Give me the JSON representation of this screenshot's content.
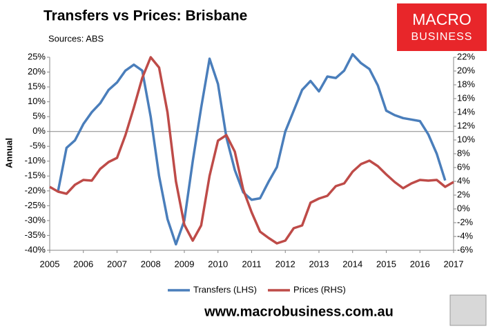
{
  "chart_data": {
    "type": "line",
    "title": "Transfers vs Prices: Brisbane",
    "subtitle": "Sources: ABS",
    "y_label": "Annual",
    "xlim": [
      2005,
      2017
    ],
    "xticks": [
      2005,
      2006,
      2007,
      2008,
      2009,
      2010,
      2011,
      2012,
      2013,
      2014,
      2015,
      2016,
      2017
    ],
    "ylim": [
      -40,
      25
    ],
    "yticks": [
      {
        "value": -40,
        "label": "-40%"
      },
      {
        "value": -35,
        "label": "-35%"
      },
      {
        "value": -30,
        "label": "-30%"
      },
      {
        "value": -25,
        "label": "-25%"
      },
      {
        "value": -20,
        "label": "-20%"
      },
      {
        "value": -15,
        "label": "-15%"
      },
      {
        "value": -10,
        "label": "-10%"
      },
      {
        "value": -5,
        "label": "-5%"
      },
      {
        "value": 0,
        "label": "0%"
      },
      {
        "value": 5,
        "label": "5%"
      },
      {
        "value": 10,
        "label": "10%"
      },
      {
        "value": 15,
        "label": "15%"
      },
      {
        "value": 20,
        "label": "20%"
      },
      {
        "value": 25,
        "label": "25%"
      }
    ],
    "y2lim": [
      -6,
      22
    ],
    "y2ticks": [
      {
        "value": -6,
        "label": "-6%"
      },
      {
        "value": -4,
        "label": "-4%"
      },
      {
        "value": -2,
        "label": "-2%"
      },
      {
        "value": 0,
        "label": "0%"
      },
      {
        "value": 2,
        "label": "2%"
      },
      {
        "value": 4,
        "label": "4%"
      },
      {
        "value": 6,
        "label": "6%"
      },
      {
        "value": 8,
        "label": "8%"
      },
      {
        "value": 10,
        "label": "10%"
      },
      {
        "value": 12,
        "label": "12%"
      },
      {
        "value": 14,
        "label": "14%"
      },
      {
        "value": 16,
        "label": "16%"
      },
      {
        "value": 18,
        "label": "18%"
      },
      {
        "value": 20,
        "label": "20%"
      },
      {
        "value": 22,
        "label": "22%"
      }
    ],
    "series": [
      {
        "name": "Transfers (LHS)",
        "color": "#4a7ebb",
        "axis": "y",
        "x": [
          2005.25,
          2005.5,
          2005.75,
          2006,
          2006.25,
          2006.5,
          2006.75,
          2007,
          2007.25,
          2007.5,
          2007.75,
          2008,
          2008.25,
          2008.5,
          2008.75,
          2009,
          2009.25,
          2009.5,
          2009.75,
          2010,
          2010.25,
          2010.5,
          2010.75,
          2011,
          2011.25,
          2011.5,
          2011.75,
          2012,
          2012.25,
          2012.5,
          2012.75,
          2013,
          2013.25,
          2013.5,
          2013.75,
          2014,
          2014.25,
          2014.5,
          2014.75,
          2015,
          2015.25,
          2015.5,
          2015.75,
          2016,
          2016.25,
          2016.5,
          2016.75
        ],
        "values": [
          -20,
          -5.5,
          -3,
          2.5,
          6.5,
          9.5,
          14,
          16.5,
          20.5,
          22.5,
          20.5,
          5,
          -15,
          -29.5,
          -38,
          -30,
          -10,
          8,
          24.5,
          16,
          -2,
          -13,
          -20.5,
          -23,
          -22.5,
          -17,
          -12,
          0,
          7,
          14,
          17,
          13.5,
          18.5,
          18,
          20.5,
          26,
          23,
          21,
          15.5,
          7,
          5.5,
          4.5,
          4,
          3.5,
          -1,
          -7.5,
          -16.5
        ]
      },
      {
        "name": "Prices (RHS)",
        "color": "#be4b48",
        "axis": "y2",
        "x": [
          2005,
          2005.25,
          2005.5,
          2005.75,
          2006,
          2006.25,
          2006.5,
          2006.75,
          2007,
          2007.25,
          2007.5,
          2007.75,
          2008,
          2008.25,
          2008.5,
          2008.75,
          2009,
          2009.25,
          2009.5,
          2009.75,
          2010,
          2010.25,
          2010.5,
          2010.75,
          2011,
          2011.25,
          2011.5,
          2011.75,
          2012,
          2012.25,
          2012.5,
          2012.75,
          2013,
          2013.25,
          2013.5,
          2013.75,
          2014,
          2014.25,
          2014.5,
          2014.75,
          2015,
          2015.25,
          2015.5,
          2015.75,
          2016,
          2016.25,
          2016.5,
          2016.75,
          2017
        ],
        "values": [
          3.2,
          2.5,
          2.2,
          3.5,
          4.2,
          4.1,
          5.8,
          6.8,
          7.4,
          10.7,
          14.7,
          19,
          22,
          20.5,
          14,
          4,
          -2.3,
          -4.6,
          -2.4,
          4.8,
          9.9,
          10.7,
          8.3,
          2.8,
          -0.5,
          -3.3,
          -4.2,
          -5,
          -4.6,
          -2.8,
          -2.4,
          0.9,
          1.5,
          1.9,
          3.3,
          3.7,
          5.4,
          6.5,
          7,
          6.2,
          5,
          3.9,
          3,
          3.7,
          4.2,
          4.1,
          4.2,
          3.2,
          3.9
        ]
      }
    ],
    "legend": "bottom"
  },
  "logo": {
    "line1": "MACRO",
    "line2": "BUSINESS"
  },
  "footer": "www.macrobusiness.com.au"
}
